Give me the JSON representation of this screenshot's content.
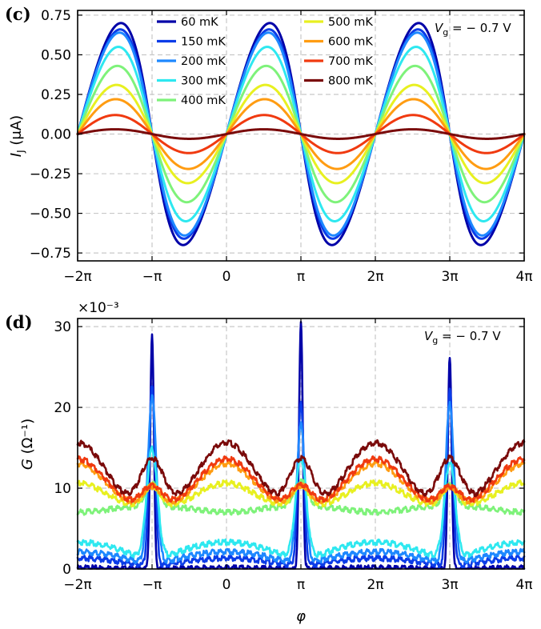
{
  "figure": {
    "panels": [
      {
        "id": "c",
        "label": "(c)",
        "annotation": "V_g = −0.7 V",
        "annotation_parts": {
          "symbol": "V",
          "subscript": "g",
          "rest": " = − 0.7 V"
        }
      },
      {
        "id": "d",
        "label": "(d)",
        "annotation": "V_g = −0.7 V",
        "annotation_parts": {
          "symbol": "V",
          "subscript": "g",
          "rest": " = − 0.7 V"
        },
        "offset_text": "×10⁻³"
      }
    ],
    "legend": [
      {
        "label": "60 mK",
        "color": "#0000a8"
      },
      {
        "label": "150 mK",
        "color": "#0b3ce8"
      },
      {
        "label": "200 mK",
        "color": "#1e88ff"
      },
      {
        "label": "300 mK",
        "color": "#2ee8f0"
      },
      {
        "label": "400 mK",
        "color": "#7ef27a"
      },
      {
        "label": "500 mK",
        "color": "#e8f020"
      },
      {
        "label": "600 mK",
        "color": "#ff9c12"
      },
      {
        "label": "700 mK",
        "color": "#f03a10"
      },
      {
        "label": "800 mK",
        "color": "#7a0a0a"
      }
    ]
  },
  "chart_data": [
    {
      "type": "line",
      "panel": "c",
      "xlabel": "",
      "ylabel": "I_J (μA)",
      "ylabel_parts": {
        "symbol": "I",
        "subscript": "J",
        "unit": " (μA)"
      },
      "xlim_pi": [
        -2,
        4
      ],
      "ylim": [
        -0.8,
        0.78
      ],
      "xticks_pi": [
        -2,
        -1,
        0,
        1,
        2,
        3,
        4
      ],
      "xtick_labels": [
        "−2π",
        "−π",
        "0",
        "π",
        "2π",
        "3π",
        "4π"
      ],
      "yticks": [
        -0.75,
        -0.5,
        -0.25,
        0.0,
        0.25,
        0.5,
        0.75
      ],
      "ytick_labels": [
        "−0.75",
        "−0.50",
        "−0.25",
        "0.00",
        "0.25",
        "0.50",
        "0.75"
      ],
      "grid": true,
      "legend_position": "top-center",
      "model": "I(φ) = A·sin(φ)/sqrt(1 − τ·sin²(φ/2)), normalized to peak amplitude",
      "series": [
        {
          "name": "60 mK",
          "peak_amplitude": 0.7,
          "skew": 0.65
        },
        {
          "name": "150 mK",
          "peak_amplitude": 0.66,
          "skew": 0.6
        },
        {
          "name": "200 mK",
          "peak_amplitude": 0.64,
          "skew": 0.55
        },
        {
          "name": "300 mK",
          "peak_amplitude": 0.55,
          "skew": 0.45
        },
        {
          "name": "400 mK",
          "peak_amplitude": 0.43,
          "skew": 0.35
        },
        {
          "name": "500 mK",
          "peak_amplitude": 0.31,
          "skew": 0.25
        },
        {
          "name": "600 mK",
          "peak_amplitude": 0.22,
          "skew": 0.15
        },
        {
          "name": "700 mK",
          "peak_amplitude": 0.12,
          "skew": 0.08
        },
        {
          "name": "800 mK",
          "peak_amplitude": 0.03,
          "skew": 0.0
        }
      ]
    },
    {
      "type": "line",
      "panel": "d",
      "xlabel": "φ",
      "ylabel": "G (Ω⁻¹)",
      "ylabel_parts": {
        "symbol": "G",
        "unit": " (Ω⁻¹)"
      },
      "xlim_pi": [
        -2,
        4
      ],
      "ylim": [
        0,
        31
      ],
      "y_scale_note": "values ×10⁻³",
      "xticks_pi": [
        -2,
        -1,
        0,
        1,
        2,
        3,
        4
      ],
      "xtick_labels": [
        "−2π",
        "−π",
        "0",
        "π",
        "2π",
        "3π",
        "4π"
      ],
      "yticks": [
        0,
        10,
        20,
        30
      ],
      "ytick_labels": [
        "0",
        "10",
        "20",
        "30"
      ],
      "grid": true,
      "model": "G(φ) = base + peak·lorentzian(φ − (2k+1)π) + dip·(1 − cos φ)/2 style curve",
      "series": [
        {
          "name": "60 mK",
          "baseline_at_0": 0.3,
          "peak_at_odd_pi": [
            28.9,
            30.5,
            26.5
          ]
        },
        {
          "name": "150 mK",
          "baseline_at_0": 1.5,
          "peak_at_odd_pi": [
            23.0,
            21.0,
            22.5
          ]
        },
        {
          "name": "200 mK",
          "baseline_at_0": 2.3,
          "peak_at_odd_pi": [
            21.5,
            18.0,
            20.5
          ]
        },
        {
          "name": "300 mK",
          "baseline_at_0": 3.5,
          "peak_at_odd_pi": [
            15.0,
            14.0,
            13.5
          ]
        },
        {
          "name": "400 mK",
          "baseline_at_0": 7.2,
          "peak_at_odd_pi": [
            10.8,
            11.0,
            10.6
          ]
        },
        {
          "name": "500 mK",
          "baseline_at_0": 10.8,
          "peak_at_odd_pi": [
            10.5,
            10.6,
            10.4
          ]
        },
        {
          "name": "600 mK",
          "baseline_at_0": 13.2,
          "peak_at_odd_pi": [
            10.4,
            10.5,
            10.3
          ]
        },
        {
          "name": "700 mK",
          "baseline_at_0": 13.8,
          "peak_at_odd_pi": [
            10.5,
            10.6,
            10.4
          ]
        },
        {
          "name": "800 mK",
          "baseline_at_0": 15.8,
          "peak_at_odd_pi": [
            13.9,
            13.9,
            13.9
          ]
        }
      ]
    }
  ]
}
